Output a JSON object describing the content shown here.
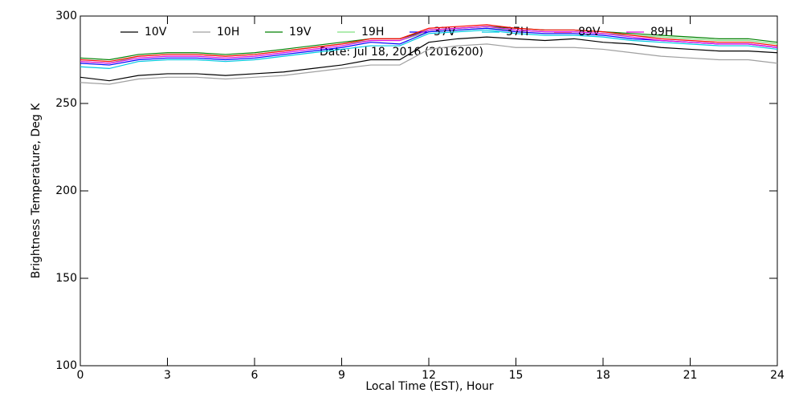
{
  "chart_data": {
    "type": "line",
    "annotation": "Date: Jul 18, 2016 (2016200)",
    "x_label": "Local Time (EST), Hour",
    "y_label": "Brightness Temperature, Deg K",
    "x": [
      0,
      1,
      2,
      3,
      4,
      5,
      6,
      7,
      8,
      9,
      10,
      11,
      12,
      13,
      14,
      15,
      16,
      17,
      18,
      19,
      20,
      21,
      22,
      23,
      24
    ],
    "series": [
      {
        "name": "10V",
        "color": "#000000",
        "values": [
          265,
          263,
          266,
          267,
          267,
          266,
          267,
          268,
          270,
          272,
          275,
          275,
          285,
          287,
          288,
          287,
          286,
          287,
          285,
          284,
          282,
          281,
          280,
          280,
          279
        ]
      },
      {
        "name": "10H",
        "color": "#a0a0a0",
        "values": [
          262,
          261,
          264,
          265,
          265,
          264,
          265,
          266,
          268,
          270,
          272,
          272,
          281,
          283,
          284,
          282,
          282,
          282,
          281,
          279,
          277,
          276,
          275,
          275,
          273
        ]
      },
      {
        "name": "19V",
        "color": "#008000",
        "values": [
          276,
          275,
          278,
          279,
          279,
          278,
          279,
          281,
          283,
          285,
          287,
          287,
          292,
          293,
          294,
          293,
          292,
          292,
          291,
          290,
          289,
          288,
          287,
          287,
          285
        ]
      },
      {
        "name": "19H",
        "color": "#80e080",
        "values": [
          274,
          273,
          277,
          278,
          278,
          277,
          278,
          280,
          282,
          284,
          286,
          286,
          291,
          292,
          293,
          292,
          291,
          291,
          290,
          289,
          288,
          287,
          286,
          286,
          284
        ]
      },
      {
        "name": "37V",
        "color": "#0000ff",
        "values": [
          273,
          272,
          275,
          276,
          276,
          275,
          276,
          278,
          280,
          282,
          285,
          284,
          291,
          292,
          293,
          291,
          290,
          290,
          289,
          287,
          286,
          285,
          284,
          284,
          282
        ]
      },
      {
        "name": "37H",
        "color": "#00c8e0",
        "values": [
          271,
          270,
          274,
          275,
          275,
          274,
          275,
          277,
          279,
          281,
          283,
          283,
          290,
          291,
          292,
          290,
          289,
          289,
          288,
          286,
          285,
          284,
          283,
          283,
          281
        ]
      },
      {
        "name": "89V",
        "color": "#ff0000",
        "values": [
          275,
          274,
          277,
          278,
          278,
          277,
          278,
          280,
          282,
          284,
          287,
          287,
          293,
          294,
          295,
          293,
          292,
          292,
          291,
          289,
          287,
          286,
          285,
          285,
          283
        ]
      },
      {
        "name": "89H",
        "color": "#e000e0",
        "values": [
          274,
          273,
          276,
          277,
          277,
          276,
          277,
          279,
          281,
          283,
          286,
          286,
          292,
          293,
          294,
          292,
          291,
          291,
          290,
          288,
          286,
          285,
          284,
          284,
          282
        ]
      }
    ],
    "xlim": [
      0,
      24
    ],
    "xticks": [
      0,
      3,
      6,
      9,
      12,
      15,
      18,
      21,
      24
    ],
    "ylim": [
      100,
      300
    ],
    "yticks": [
      100,
      150,
      200,
      250,
      300
    ]
  }
}
